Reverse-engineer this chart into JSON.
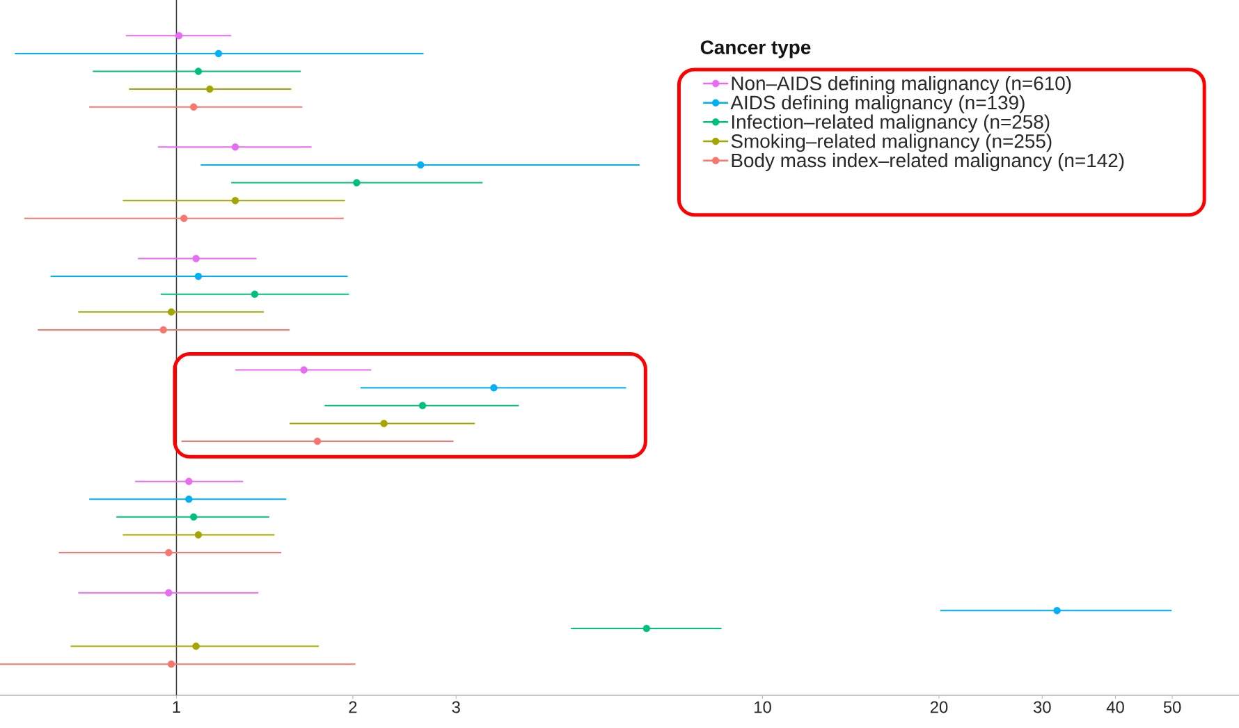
{
  "chart_data": {
    "type": "scatter",
    "orientation": "horizontal",
    "legend_title": "Cancer type",
    "categories": [
      null,
      null,
      null,
      null,
      null,
      null
    ],
    "series": [
      {
        "name": "Non–AIDS defining malignancy (n=610)",
        "color": "#e76bf3",
        "values": [
          1.01,
          1.26,
          1.08,
          1.65,
          1.05,
          0.97
        ],
        "errors": [
          [
            0.82,
            1.24
          ],
          [
            0.93,
            1.7
          ],
          [
            0.86,
            1.37
          ],
          [
            1.26,
            2.15
          ],
          [
            0.85,
            1.3
          ],
          [
            0.68,
            1.38
          ]
        ]
      },
      {
        "name": "AIDS defining malignancy (n=139)",
        "color": "#00b0f6",
        "values": [
          1.18,
          2.61,
          1.09,
          3.48,
          1.05,
          31.8
        ],
        "errors": [
          [
            0.53,
            2.64
          ],
          [
            1.1,
            6.17
          ],
          [
            0.61,
            1.96
          ],
          [
            2.06,
            5.85
          ],
          [
            0.71,
            1.54
          ],
          [
            20.1,
            49.9
          ]
        ]
      },
      {
        "name": "Infection–related malignancy (n=258)",
        "color": "#00bf7d",
        "values": [
          1.09,
          2.03,
          1.36,
          2.63,
          1.07,
          6.34
        ],
        "errors": [
          [
            0.72,
            1.63
          ],
          [
            1.24,
            3.33
          ],
          [
            0.94,
            1.97
          ],
          [
            1.79,
            3.84
          ],
          [
            0.79,
            1.44
          ],
          [
            4.71,
            8.51
          ]
        ]
      },
      {
        "name": "Smoking–related malignancy (n=255)",
        "color": "#a3a500",
        "values": [
          1.14,
          1.26,
          0.98,
          2.26,
          1.09,
          1.08
        ],
        "errors": [
          [
            0.83,
            1.57
          ],
          [
            0.81,
            1.94
          ],
          [
            0.68,
            1.41
          ],
          [
            1.56,
            3.23
          ],
          [
            0.81,
            1.47
          ],
          [
            0.66,
            1.75
          ]
        ]
      },
      {
        "name": "Body mass index–related malignancy (n=142)",
        "color": "#f8766d",
        "values": [
          1.07,
          1.03,
          0.95,
          1.74,
          0.97,
          0.98
        ],
        "errors": [
          [
            0.71,
            1.64
          ],
          [
            0.55,
            1.93
          ],
          [
            0.58,
            1.56
          ],
          [
            1.02,
            2.97
          ],
          [
            0.63,
            1.51
          ],
          [
            0.5,
            2.02
          ]
        ]
      }
    ],
    "xlim": [
      0.5,
      65
    ],
    "xticks": [
      1,
      2,
      3,
      10,
      20,
      30,
      40,
      50
    ],
    "log": "x",
    "tick_labels": "x",
    "grid": false,
    "legend": "top right",
    "marker": "circle",
    "line_style": "solid",
    "ref_lines": [
      {
        "axis": "x",
        "value": 1,
        "color": "#333333"
      }
    ]
  }
}
